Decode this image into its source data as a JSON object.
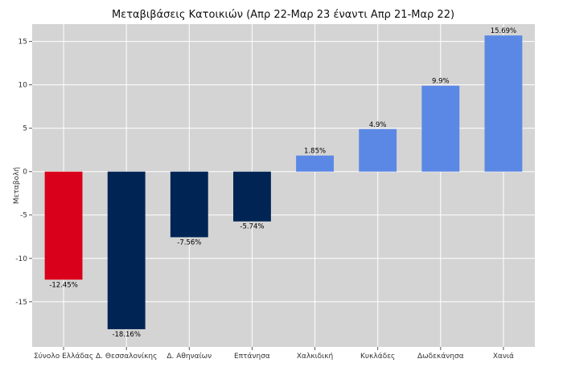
{
  "chart_data": {
    "type": "bar",
    "title": "Μεταβιβάσεις Κατοικιών (Απρ 22-Μαρ 23 έναντι Απρ 21-Μαρ 22)",
    "xlabel": "",
    "ylabel": "Μεταβολή",
    "categories": [
      "Σύνολο Ελλάδας",
      "Δ. Θεσσαλονίκης",
      "Δ. Αθηναίων",
      "Επτάνησα",
      "Χαλκιδική",
      "Κυκλάδες",
      "Δωδεκάνησα",
      "Χανιά"
    ],
    "values": [
      -12.45,
      -18.16,
      -7.56,
      -5.74,
      1.85,
      4.9,
      9.9,
      15.69
    ],
    "value_labels": [
      "-12.45%",
      "-18.16%",
      "-7.56%",
      "-5.74%",
      "1.85%",
      "4.9%",
      "9.9%",
      "15.69%"
    ],
    "bar_colors": [
      "#d9001b",
      "#002554",
      "#002554",
      "#002554",
      "#5b88e5",
      "#5b88e5",
      "#5b88e5",
      "#5b88e5"
    ],
    "yticks": [
      15,
      10,
      5,
      0,
      -5,
      -10,
      -15
    ],
    "ylim": [
      -20.2,
      17
    ],
    "grid": true,
    "background": "#d4d4d4"
  }
}
